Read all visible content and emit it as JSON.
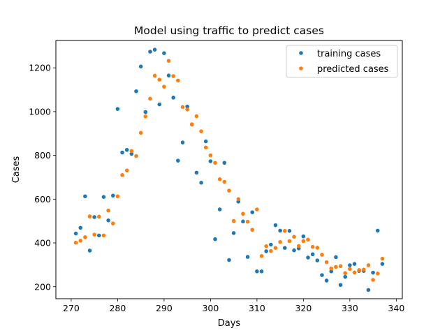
{
  "chart_data": {
    "type": "scatter",
    "title": "Model using traffic to predict cases",
    "xlabel": "Days",
    "ylabel": "Cases",
    "xlim": [
      266.7,
      341.3
    ],
    "ylim": [
      145,
      1325
    ],
    "xticks": [
      270,
      280,
      290,
      300,
      310,
      320,
      330,
      340
    ],
    "yticks": [
      200,
      400,
      600,
      800,
      1000,
      1200
    ],
    "grid": false,
    "legend_position": "upper right",
    "series": [
      {
        "name": "training cases",
        "color": "#1f77b4",
        "x": [
          271,
          272,
          273,
          274,
          275,
          276,
          277,
          278,
          279,
          280,
          281,
          282,
          283,
          284,
          285,
          286,
          287,
          288,
          289,
          290,
          291,
          292,
          293,
          294,
          295,
          296,
          297,
          298,
          299,
          300,
          301,
          302,
          303,
          304,
          305,
          306,
          307,
          308,
          309,
          310,
          311,
          312,
          313,
          314,
          315,
          316,
          317,
          318,
          319,
          320,
          321,
          322,
          323,
          324,
          325,
          326,
          327,
          328,
          329,
          330,
          331,
          332,
          333,
          334,
          335,
          336,
          337
        ],
        "y": [
          443,
          469,
          613,
          365,
          518,
          434,
          610,
          503,
          616,
          1012,
          813,
          825,
          807,
          1093,
          1206,
          998,
          1274,
          1283,
          1033,
          1267,
          1165,
          1064,
          776,
          859,
          1023,
          941,
          721,
          675,
          864,
          773,
          417,
          553,
          766,
          322,
          445,
          589,
          498,
          336,
          540,
          270,
          270,
          362,
          392,
          481,
          456,
          377,
          455,
          366,
          375,
          430,
          333,
          348,
          320,
          253,
          228,
          270,
          335,
          208,
          245,
          298,
          304,
          272,
          272,
          185,
          264,
          456,
          304
        ]
      },
      {
        "name": "predicted cases",
        "color": "#ff7f0e",
        "x": [
          271,
          272,
          273,
          274,
          275,
          276,
          277,
          278,
          279,
          280,
          281,
          282,
          283,
          284,
          285,
          286,
          287,
          288,
          289,
          290,
          291,
          292,
          293,
          294,
          295,
          296,
          297,
          298,
          299,
          300,
          301,
          302,
          303,
          304,
          305,
          306,
          307,
          308,
          309,
          310,
          311,
          312,
          313,
          314,
          315,
          316,
          317,
          318,
          319,
          320,
          321,
          322,
          323,
          324,
          325,
          326,
          327,
          328,
          329,
          330,
          331,
          332,
          333,
          334,
          335,
          336,
          337
        ],
        "y": [
          401,
          410,
          426,
          521,
          438,
          520,
          434,
          548,
          489,
          613,
          710,
          731,
          820,
          797,
          903,
          978,
          1059,
          1164,
          1146,
          1114,
          1232,
          1162,
          1142,
          1021,
          1010,
          942,
          979,
          910,
          836,
          800,
          766,
          691,
          679,
          639,
          500,
          600,
          533,
          497,
          460,
          553,
          340,
          385,
          363,
          377,
          404,
          455,
          408,
          428,
          386,
          408,
          415,
          382,
          378,
          346,
          312,
          283,
          290,
          294,
          262,
          281,
          265,
          276,
          278,
          298,
          231,
          260,
          328
        ]
      }
    ]
  }
}
